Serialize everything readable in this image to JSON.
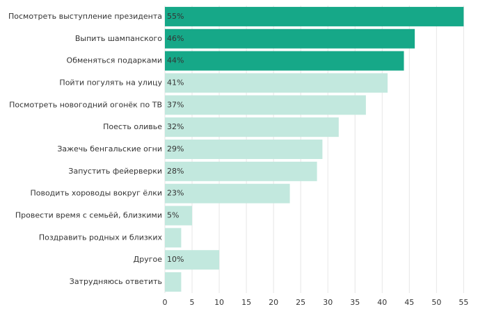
{
  "chart_data": {
    "type": "barh",
    "categories": [
      "Посмотреть выступление президента",
      "Выпить шампанского",
      "Обменяться подарками",
      "Пойти погулять на улицу",
      "Посмотреть новогодний огонёк по ТВ",
      "Поесть оливье",
      "Зажечь бенгальские огни",
      "Запустить фейерверки",
      "Поводить хороводы вокруг ёлки",
      "Провести время с семьёй, близкими",
      "Поздравить родных и близких",
      "Другое",
      "Затрудняюсь ответить"
    ],
    "values": [
      55,
      46,
      44,
      41,
      37,
      32,
      29,
      28,
      23,
      5,
      3,
      10,
      3
    ],
    "value_labels": [
      "55%",
      "46%",
      "44%",
      "41%",
      "37%",
      "32%",
      "29%",
      "28%",
      "23%",
      "5%",
      null,
      "10%",
      null
    ],
    "colors": [
      "#16a888",
      "#16a888",
      "#16a888",
      "#c2e8de",
      "#c2e8de",
      "#c2e8de",
      "#c2e8de",
      "#c2e8de",
      "#c2e8de",
      "#c2e8de",
      "#c2e8de",
      "#c2e8de",
      "#c2e8de"
    ],
    "xlim": [
      0,
      57
    ],
    "xticks": [
      0,
      5,
      10,
      15,
      20,
      25,
      30,
      35,
      40,
      45,
      50,
      55
    ],
    "grid": true
  }
}
